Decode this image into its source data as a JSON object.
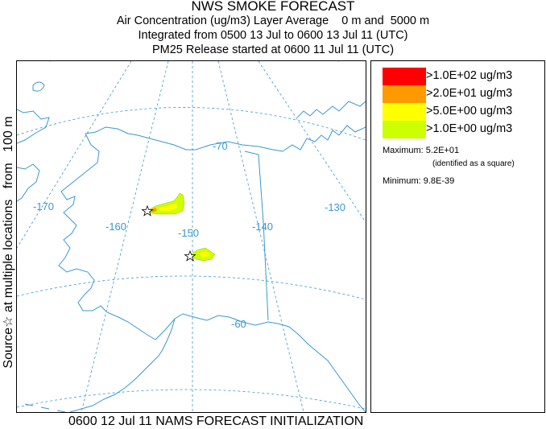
{
  "title": "NWS SMOKE FORECAST",
  "subtitle_lines": [
    "Air Concentration (ug/m3) Layer Average    0 m and  5000 m",
    "Integrated from 0500 13 Jul to 0600 13 Jul 11 (UTC)",
    "PM25 Release started at 0600 11 Jul 11 (UTC)"
  ],
  "side_label": "Source☆ at multiple locations   from   100 m",
  "bottom_label": "0600 12 Jul 11 NAMS FORECAST INITIALIZATION",
  "map": {
    "line_color": "#3a98cf",
    "grid_labels": [
      "-170",
      "-160",
      "-150",
      "-140",
      "-130",
      "-70",
      "-60"
    ]
  },
  "legend": {
    "items": [
      {
        "label": ">1.0E+02 ug/m3",
        "color": "#ff0000"
      },
      {
        "label": ">2.0E+01 ug/m3",
        "color": "#ff9900"
      },
      {
        "label": ">5.0E+00 ug/m3",
        "color": "#ffff00"
      },
      {
        "label": ">1.0E+00 ug/m3",
        "color": "#ccff00"
      }
    ],
    "maximum": "Maximum: 5.2E+01",
    "maximum_note": "(identified as a square)",
    "minimum": "Minimum: 9.8E-39"
  }
}
